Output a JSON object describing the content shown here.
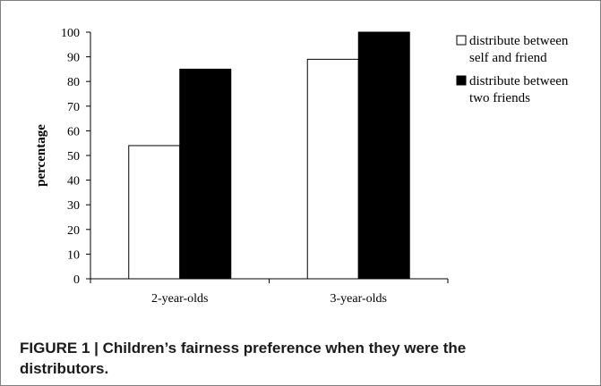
{
  "chart_data": {
    "type": "bar",
    "categories": [
      "2-year-olds",
      "3-year-olds"
    ],
    "series": [
      {
        "name": "distribute between self and friend",
        "legend_lines": [
          "distribute between",
          "self and friend"
        ],
        "values": [
          54,
          89
        ],
        "color": "#ffffff"
      },
      {
        "name": "distribute between two friends",
        "legend_lines": [
          "distribute between",
          "two friends"
        ],
        "values": [
          85,
          100
        ],
        "color": "#000000"
      }
    ],
    "ylabel": "percentage",
    "xlabel": "",
    "ylim": [
      0,
      100
    ],
    "yticks": [
      0,
      10,
      20,
      30,
      40,
      50,
      60,
      70,
      80,
      90,
      100
    ],
    "grid": false,
    "legend_position": "right"
  },
  "caption": {
    "line1": "FIGURE 1 | Children’s fairness preference when they were the",
    "line2": "distributors."
  }
}
